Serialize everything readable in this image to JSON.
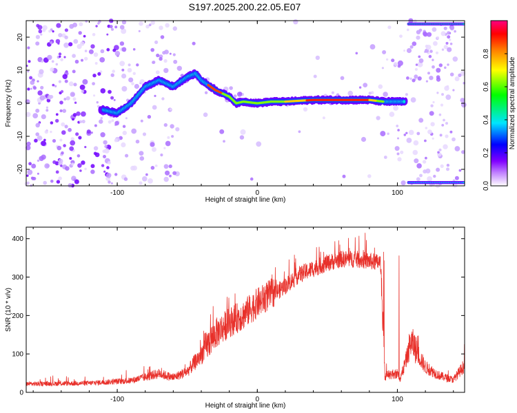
{
  "title": "S197.2025.200.22.05.E07",
  "chart_data": [
    {
      "type": "heatmap",
      "xlabel": "Height of straight line (km)",
      "ylabel": "Frequency (Hz)",
      "xlim": [
        -165,
        148
      ],
      "ylim": [
        -25,
        25
      ],
      "xticks": [
        -100,
        0,
        100
      ],
      "yticks": [
        -20,
        -10,
        0,
        10,
        20
      ],
      "colorbar": {
        "label": "Normalized spectral amplitude",
        "range": [
          0,
          1
        ],
        "ticks": [
          0.0,
          0.2,
          0.4,
          0.6,
          0.8
        ],
        "colors": [
          "#ffffff",
          "#8000ff",
          "#0000ff",
          "#00e5ff",
          "#00ff00",
          "#ffff00",
          "#ff8000",
          "#ff0000",
          "#ff0080"
        ]
      },
      "ridge": {
        "x": [
          -110,
          -100,
          -90,
          -80,
          -70,
          -60,
          -50,
          -44,
          -40,
          -30,
          -20,
          -15,
          -10,
          0,
          10,
          20,
          40,
          60,
          80,
          90,
          100,
          105
        ],
        "y": [
          -2,
          -3,
          0,
          5,
          7,
          5,
          8,
          9,
          7,
          4,
          2,
          0,
          0.5,
          0,
          0.5,
          0.5,
          1,
          1,
          1,
          0.5,
          0.5,
          0.5
        ]
      }
    },
    {
      "type": "line",
      "xlabel": "Height of straight line (km)",
      "ylabel": "SNR (10 * v/v)",
      "xlim": [
        -165,
        148
      ],
      "ylim": [
        0,
        430
      ],
      "xticks": [
        -100,
        0,
        100
      ],
      "yticks": [
        0,
        100,
        200,
        300,
        400
      ],
      "color": "#e8302a",
      "envelope": {
        "x": [
          -165,
          -120,
          -90,
          -70,
          -60,
          -50,
          -40,
          -30,
          -20,
          -10,
          0,
          10,
          20,
          30,
          40,
          50,
          60,
          70,
          80,
          88,
          91,
          100,
          102,
          110,
          120,
          130,
          140,
          148
        ],
        "y": [
          20,
          22,
          28,
          45,
          35,
          50,
          90,
          140,
          170,
          190,
          220,
          245,
          270,
          300,
          315,
          330,
          340,
          340,
          335,
          330,
          40,
          45,
          30,
          120,
          60,
          40,
          30,
          65
        ]
      }
    }
  ]
}
